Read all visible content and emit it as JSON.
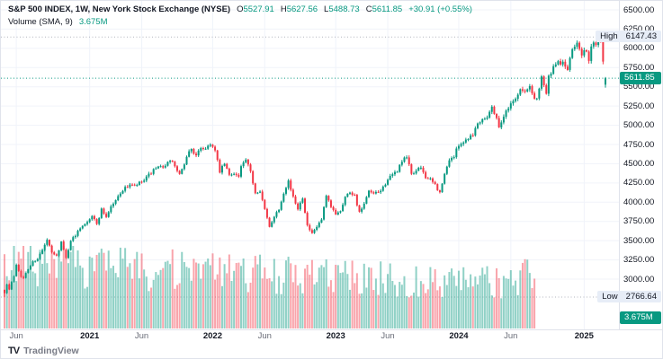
{
  "app": {
    "watermark": "TradingView",
    "logo_mark": "TV"
  },
  "legend": {
    "title": "S&P 500 INDEX, 1W, New York Stock Exchange (NYSE)",
    "ohlc": {
      "o_label": "O",
      "o": "5527.91",
      "h_label": "H",
      "h": "5627.56",
      "l_label": "L",
      "l": "5488.73",
      "c_label": "C",
      "c": "5611.85",
      "change": "+30.91 (+0.55%)"
    },
    "indicator": {
      "name": "Volume (SMA, 9)",
      "value": "3.675M"
    }
  },
  "price_axis": {
    "high_label": {
      "text": "High",
      "value": "6147.43"
    },
    "low_label": {
      "text": "Low",
      "value": "2766.64"
    },
    "last_price": "5611.85",
    "volume_value": "3.675M",
    "ticks": [
      {
        "value": 6500,
        "label": "6500.00"
      },
      {
        "value": 6250,
        "label": "6250.00"
      },
      {
        "value": 6000,
        "label": "6000.00"
      },
      {
        "value": 5750,
        "label": "5750.00"
      },
      {
        "value": 5500,
        "label": "5500.00"
      },
      {
        "value": 5250,
        "label": "5250.00"
      },
      {
        "value": 5000,
        "label": "5000.00"
      },
      {
        "value": 4750,
        "label": "4750.00"
      },
      {
        "value": 4500,
        "label": "4500.00"
      },
      {
        "value": 4250,
        "label": "4250.00"
      },
      {
        "value": 4000,
        "label": "4000.00"
      },
      {
        "value": 3750,
        "label": "3750.00"
      },
      {
        "value": 3500,
        "label": "3500.00"
      },
      {
        "value": 3250,
        "label": "3250.00"
      },
      {
        "value": 3000,
        "label": "3000.00"
      }
    ]
  },
  "time_axis": {
    "ticks": [
      {
        "label": "Jun",
        "week": 5,
        "strong": false
      },
      {
        "label": "2021",
        "week": 36,
        "strong": true
      },
      {
        "label": "Jun",
        "week": 58,
        "strong": false
      },
      {
        "label": "2022",
        "week": 88,
        "strong": true
      },
      {
        "label": "Jun",
        "week": 110,
        "strong": false
      },
      {
        "label": "2023",
        "week": 140,
        "strong": true
      },
      {
        "label": "Jun",
        "week": 162,
        "strong": false
      },
      {
        "label": "2024",
        "week": 192,
        "strong": true
      },
      {
        "label": "Jun",
        "week": 214,
        "strong": false
      },
      {
        "label": "2025",
        "week": 245,
        "strong": true
      }
    ]
  },
  "chart_data": {
    "type": "candlestick+volume",
    "symbol": "S&P 500 INDEX",
    "interval": "1W",
    "exchange": "New York Stock Exchange (NYSE)",
    "last_candle": {
      "open": 5527.91,
      "high": 5627.56,
      "low": 5488.73,
      "close": 5611.85,
      "change": 30.91,
      "change_pct": 0.55
    },
    "session_high": 6147.43,
    "session_low": 2766.64,
    "high_week": 252,
    "weeks_total": 255,
    "volume_weeks": 224,
    "sma": {
      "length": 9,
      "value_label": "3.675M"
    },
    "y_axis_range": [
      2740,
      6500
    ],
    "grid": true,
    "colors": {
      "up": "#089981",
      "down": "#F23645",
      "volume_up": "rgba(8,153,129,0.45)",
      "volume_down": "rgba(242,54,69,0.45)",
      "last_price_line": "#089981",
      "highlow_line": "#B2B5BE",
      "marker_bg": "#E7EDF7",
      "grid": "#F0F3FA"
    },
    "weekly_close_breakpoints": [
      [
        0,
        2831
      ],
      [
        1,
        2930
      ],
      [
        2,
        2864
      ],
      [
        3,
        2955
      ],
      [
        4,
        3044
      ],
      [
        5,
        3194
      ],
      [
        7,
        3041
      ],
      [
        8,
        3009
      ],
      [
        10,
        3130
      ],
      [
        12,
        3225
      ],
      [
        14,
        3271
      ],
      [
        16,
        3373
      ],
      [
        18,
        3508
      ],
      [
        20,
        3341
      ],
      [
        22,
        3298
      ],
      [
        24,
        3484
      ],
      [
        26,
        3270
      ],
      [
        28,
        3509
      ],
      [
        30,
        3558
      ],
      [
        31,
        3638
      ],
      [
        33,
        3703
      ],
      [
        35,
        3756
      ],
      [
        37,
        3825
      ],
      [
        39,
        3714
      ],
      [
        41,
        3907
      ],
      [
        43,
        3811
      ],
      [
        45,
        3943
      ],
      [
        47,
        4020
      ],
      [
        49,
        4129
      ],
      [
        51,
        4181
      ],
      [
        53,
        4233
      ],
      [
        55,
        4204
      ],
      [
        57,
        4247
      ],
      [
        59,
        4280
      ],
      [
        61,
        4352
      ],
      [
        63,
        4412
      ],
      [
        65,
        4442
      ],
      [
        67,
        4468
      ],
      [
        69,
        4509
      ],
      [
        71,
        4535
      ],
      [
        72,
        4458
      ],
      [
        74,
        4357
      ],
      [
        76,
        4471
      ],
      [
        77,
        4605
      ],
      [
        79,
        4698
      ],
      [
        81,
        4594
      ],
      [
        83,
        4712
      ],
      [
        85,
        4698
      ],
      [
        87,
        4766
      ],
      [
        89,
        4663
      ],
      [
        91,
        4397
      ],
      [
        93,
        4500
      ],
      [
        95,
        4349
      ],
      [
        97,
        4385
      ],
      [
        99,
        4329
      ],
      [
        100,
        4463
      ],
      [
        102,
        4545
      ],
      [
        104,
        4392
      ],
      [
        106,
        4123
      ],
      [
        108,
        4158
      ],
      [
        110,
        3901
      ],
      [
        112,
        3675
      ],
      [
        114,
        3825
      ],
      [
        116,
        3912
      ],
      [
        118,
        4130
      ],
      [
        120,
        4280
      ],
      [
        122,
        4057
      ],
      [
        124,
        3924
      ],
      [
        126,
        4067
      ],
      [
        128,
        3693
      ],
      [
        130,
        3583
      ],
      [
        132,
        3678
      ],
      [
        134,
        3770
      ],
      [
        136,
        4072
      ],
      [
        138,
        3934
      ],
      [
        140,
        3852
      ],
      [
        142,
        3895
      ],
      [
        144,
        4070
      ],
      [
        146,
        4136
      ],
      [
        148,
        4090
      ],
      [
        150,
        3861
      ],
      [
        152,
        3970
      ],
      [
        154,
        4137
      ],
      [
        156,
        4105
      ],
      [
        158,
        4124
      ],
      [
        160,
        4191
      ],
      [
        162,
        4298
      ],
      [
        164,
        4348
      ],
      [
        166,
        4410
      ],
      [
        168,
        4536
      ],
      [
        170,
        4582
      ],
      [
        172,
        4370
      ],
      [
        174,
        4406
      ],
      [
        176,
        4450
      ],
      [
        178,
        4330
      ],
      [
        180,
        4288
      ],
      [
        182,
        4224
      ],
      [
        184,
        4117
      ],
      [
        186,
        4358
      ],
      [
        188,
        4559
      ],
      [
        190,
        4594
      ],
      [
        192,
        4754
      ],
      [
        194,
        4783
      ],
      [
        196,
        4840
      ],
      [
        198,
        4890
      ],
      [
        200,
        5026
      ],
      [
        202,
        5088
      ],
      [
        204,
        5117
      ],
      [
        206,
        5234
      ],
      [
        208,
        5100
      ],
      [
        209,
        4967
      ],
      [
        211,
        5128
      ],
      [
        213,
        5222
      ],
      [
        214,
        5305
      ],
      [
        216,
        5346
      ],
      [
        218,
        5465
      ],
      [
        220,
        5431
      ],
      [
        222,
        5505
      ],
      [
        224,
        5347
      ],
      [
        225,
        5344
      ],
      [
        227,
        5648
      ],
      [
        229,
        5408
      ],
      [
        230,
        5626
      ],
      [
        232,
        5738
      ],
      [
        234,
        5815
      ],
      [
        236,
        5808
      ],
      [
        238,
        5728
      ],
      [
        240,
        5973
      ],
      [
        242,
        6090
      ],
      [
        244,
        5930
      ],
      [
        245,
        5970
      ],
      [
        246,
        5942
      ],
      [
        247,
        5827
      ],
      [
        248,
        5996
      ],
      [
        249,
        6101
      ],
      [
        250,
        6040
      ],
      [
        251,
        6115
      ],
      [
        252,
        6114
      ],
      [
        253,
        5850
      ],
      [
        254,
        5611.85
      ]
    ]
  }
}
